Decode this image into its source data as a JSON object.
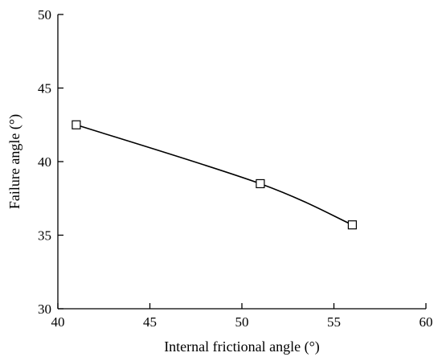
{
  "chart_data": {
    "type": "line",
    "xlabel": "Internal frictional angle (°)",
    "ylabel": "Failure angle (°)",
    "xlim": [
      40,
      60
    ],
    "ylim": [
      30,
      50
    ],
    "xticks": [
      40,
      45,
      50,
      55,
      60
    ],
    "yticks": [
      30,
      35,
      40,
      45,
      50
    ],
    "grid": false,
    "series": [
      {
        "x": [
          41,
          51,
          56
        ],
        "y": [
          42.5,
          38.5,
          35.7
        ],
        "marker": "open-square",
        "color": "#000000"
      }
    ]
  }
}
